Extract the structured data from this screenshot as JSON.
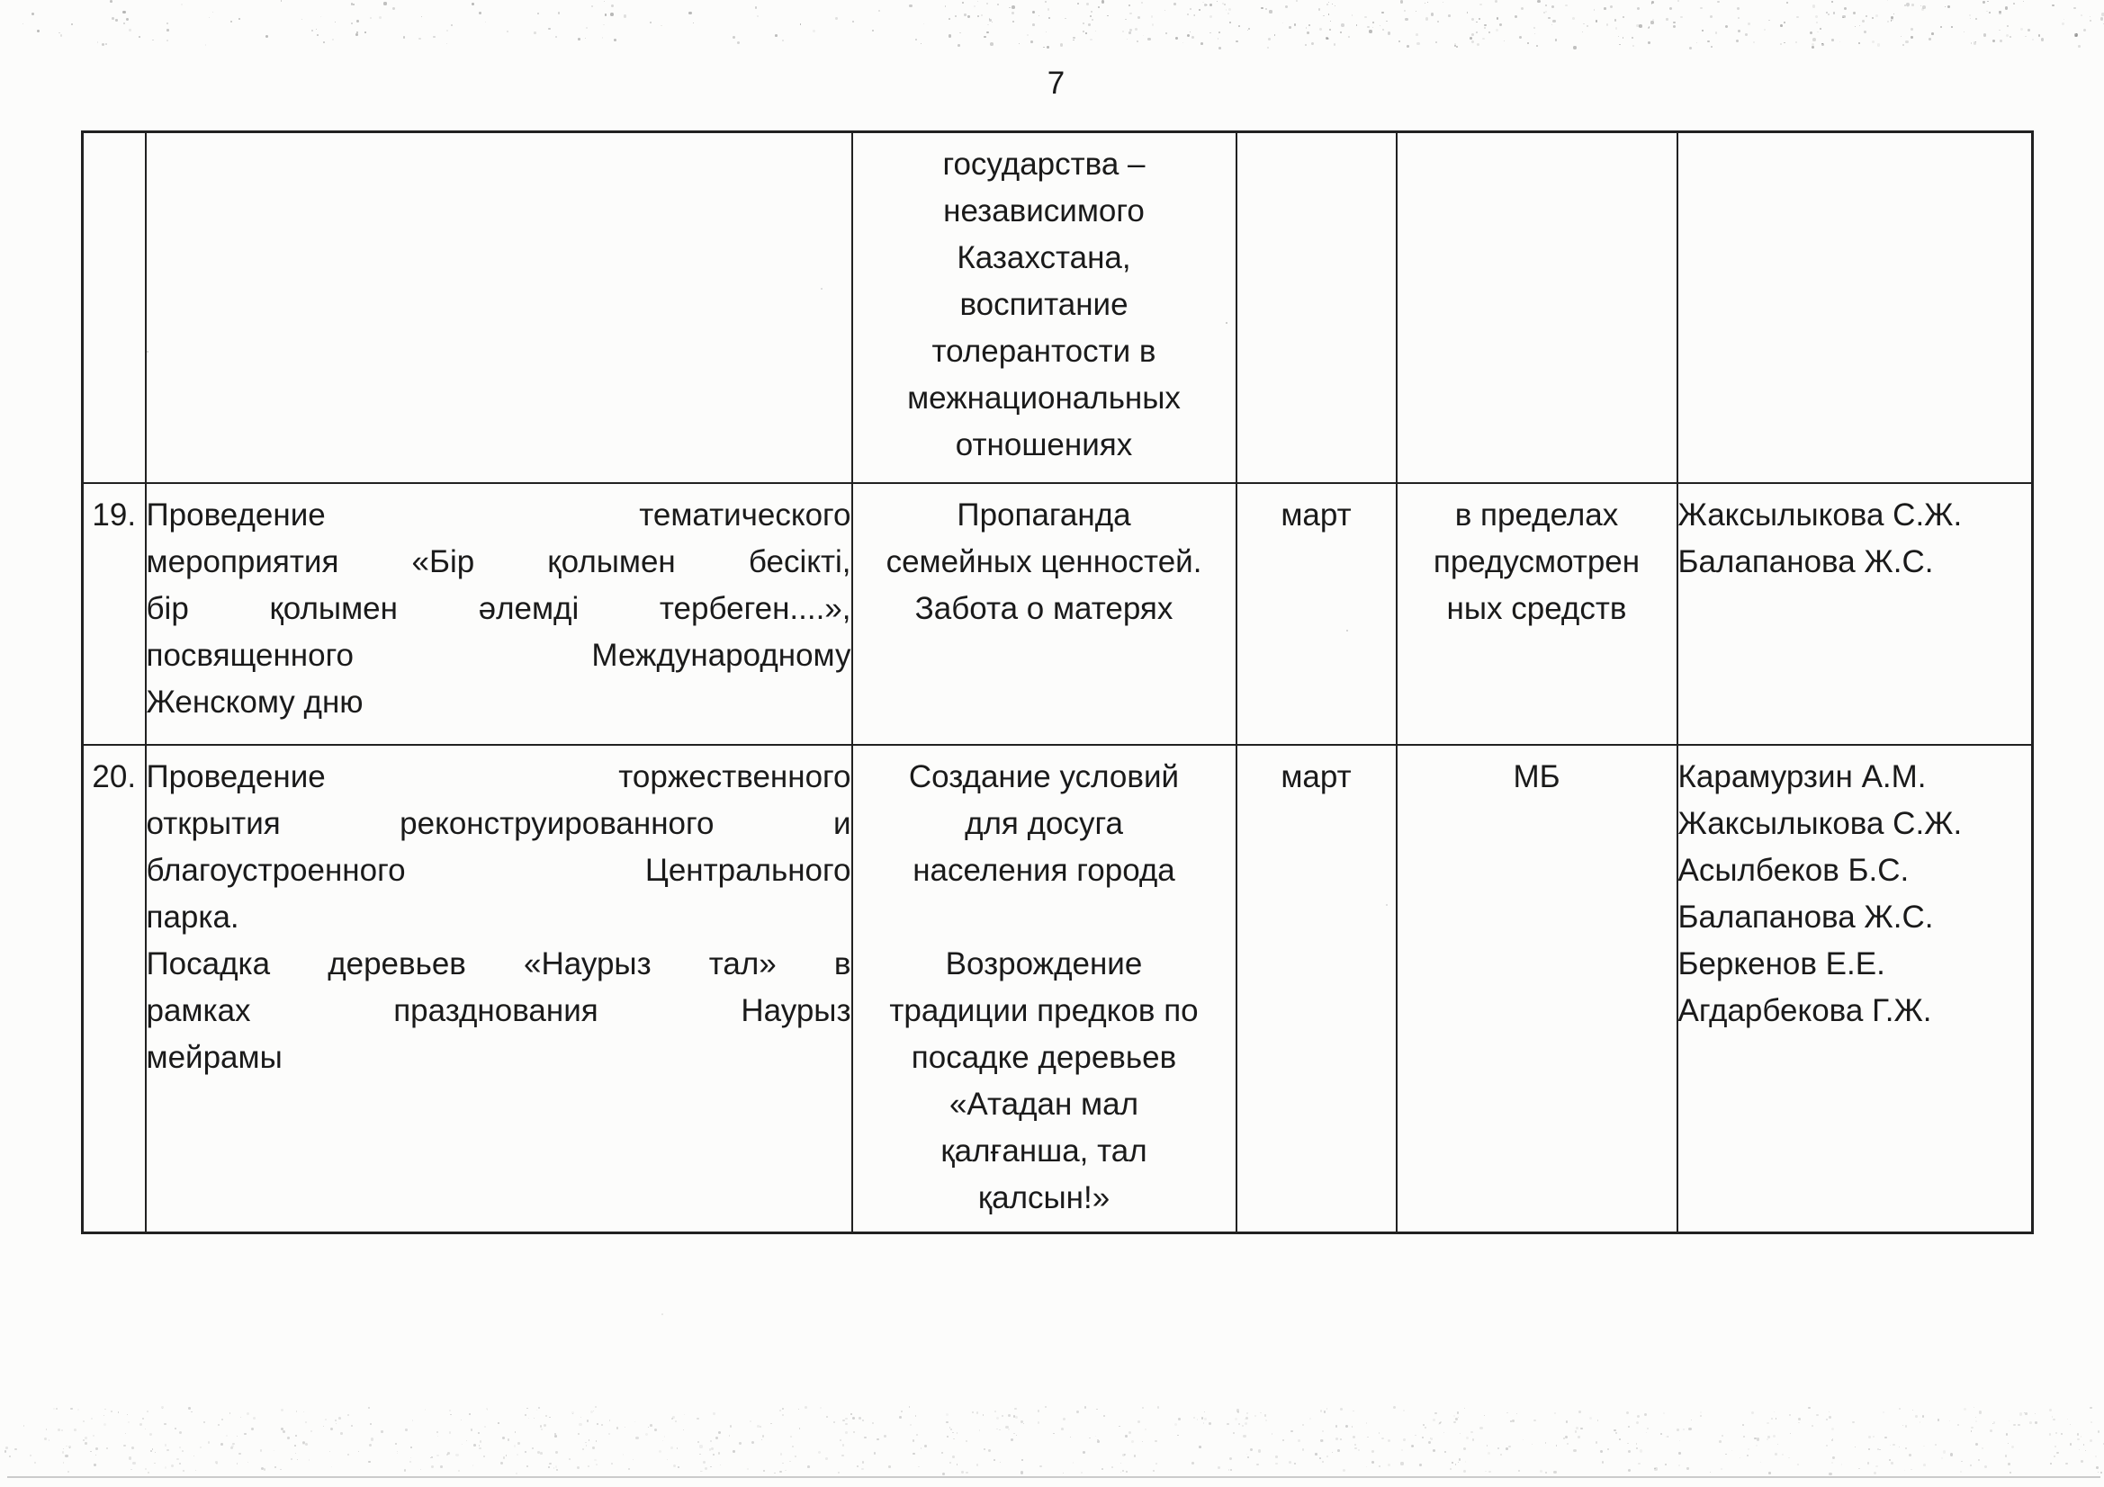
{
  "page": {
    "number": "7"
  },
  "colors": {
    "text": "#1a1a1a",
    "table_border": "#212121",
    "paper": "#fcfcfb",
    "scan_artifact_line": "#cbcbcb"
  },
  "table": {
    "rows": [
      {
        "num": "",
        "activity": [],
        "purpose": [
          "государства –",
          "независимого",
          "Казахстана,",
          "воспитание",
          "толерантости  в",
          "межнациональных",
          "отношениях"
        ],
        "month": "",
        "budget": [],
        "responsible": []
      },
      {
        "num": "19.",
        "activity": [
          {
            "text": "Проведение тематического",
            "fill": true
          },
          {
            "text": "мероприятия «Бір қолымен бесікті,",
            "fill": true
          },
          {
            "text": "бір қолымен әлемді тербеген....»,",
            "fill": true
          },
          {
            "text": "посвященного Международному",
            "fill": true
          },
          {
            "text": "Женскому дню",
            "fill": false
          }
        ],
        "purpose": [
          "Пропаганда",
          "семейных ценностей.",
          "Забота о матерях"
        ],
        "month": "март",
        "budget": [
          "в пределах",
          "предусмотрен",
          "ных средств"
        ],
        "responsible": [
          "Жаксылыкова С.Ж.",
          "Балапанова Ж.С."
        ]
      },
      {
        "num": "20.",
        "activity": [
          {
            "text": "Проведение торжественного",
            "fill": true
          },
          {
            "text": "открытия реконструированного и",
            "fill": true
          },
          {
            "text": "благоустроенного Центрального",
            "fill": true
          },
          {
            "text": "парка.",
            "fill": false
          },
          {
            "text": "Посадка деревьев «Наурыз тал» в",
            "fill": true
          },
          {
            "text": "рамках празднования Наурыз",
            "fill": true
          },
          {
            "text": "мейрамы",
            "fill": false
          }
        ],
        "purpose": [
          "Создание условий",
          "для досуга",
          "населения города",
          "",
          "Возрождение",
          "традиции предков по",
          "посадке деревьев",
          "«Атадан мал",
          "қалғанша, тал",
          "қалсын!»"
        ],
        "month": "март",
        "budget": [
          "МБ"
        ],
        "responsible": [
          "Карамурзин А.М.",
          "Жаксылыкова С.Ж.",
          "Асылбеков Б.С.",
          "Балапанова Ж.С.",
          "Беркенов Е.Е.",
          "Агдарбекова Г.Ж."
        ]
      }
    ]
  }
}
